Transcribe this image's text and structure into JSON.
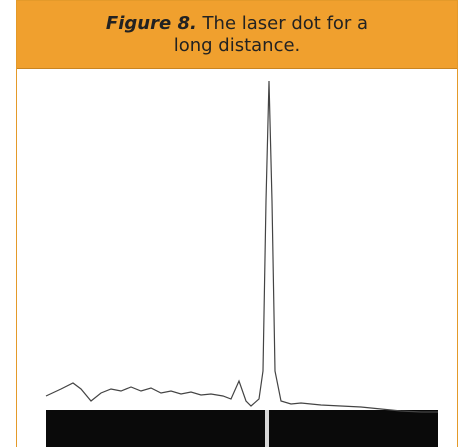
{
  "figure": {
    "label": "Figure 8.",
    "caption": "The laser dot for a long distance."
  }
}
